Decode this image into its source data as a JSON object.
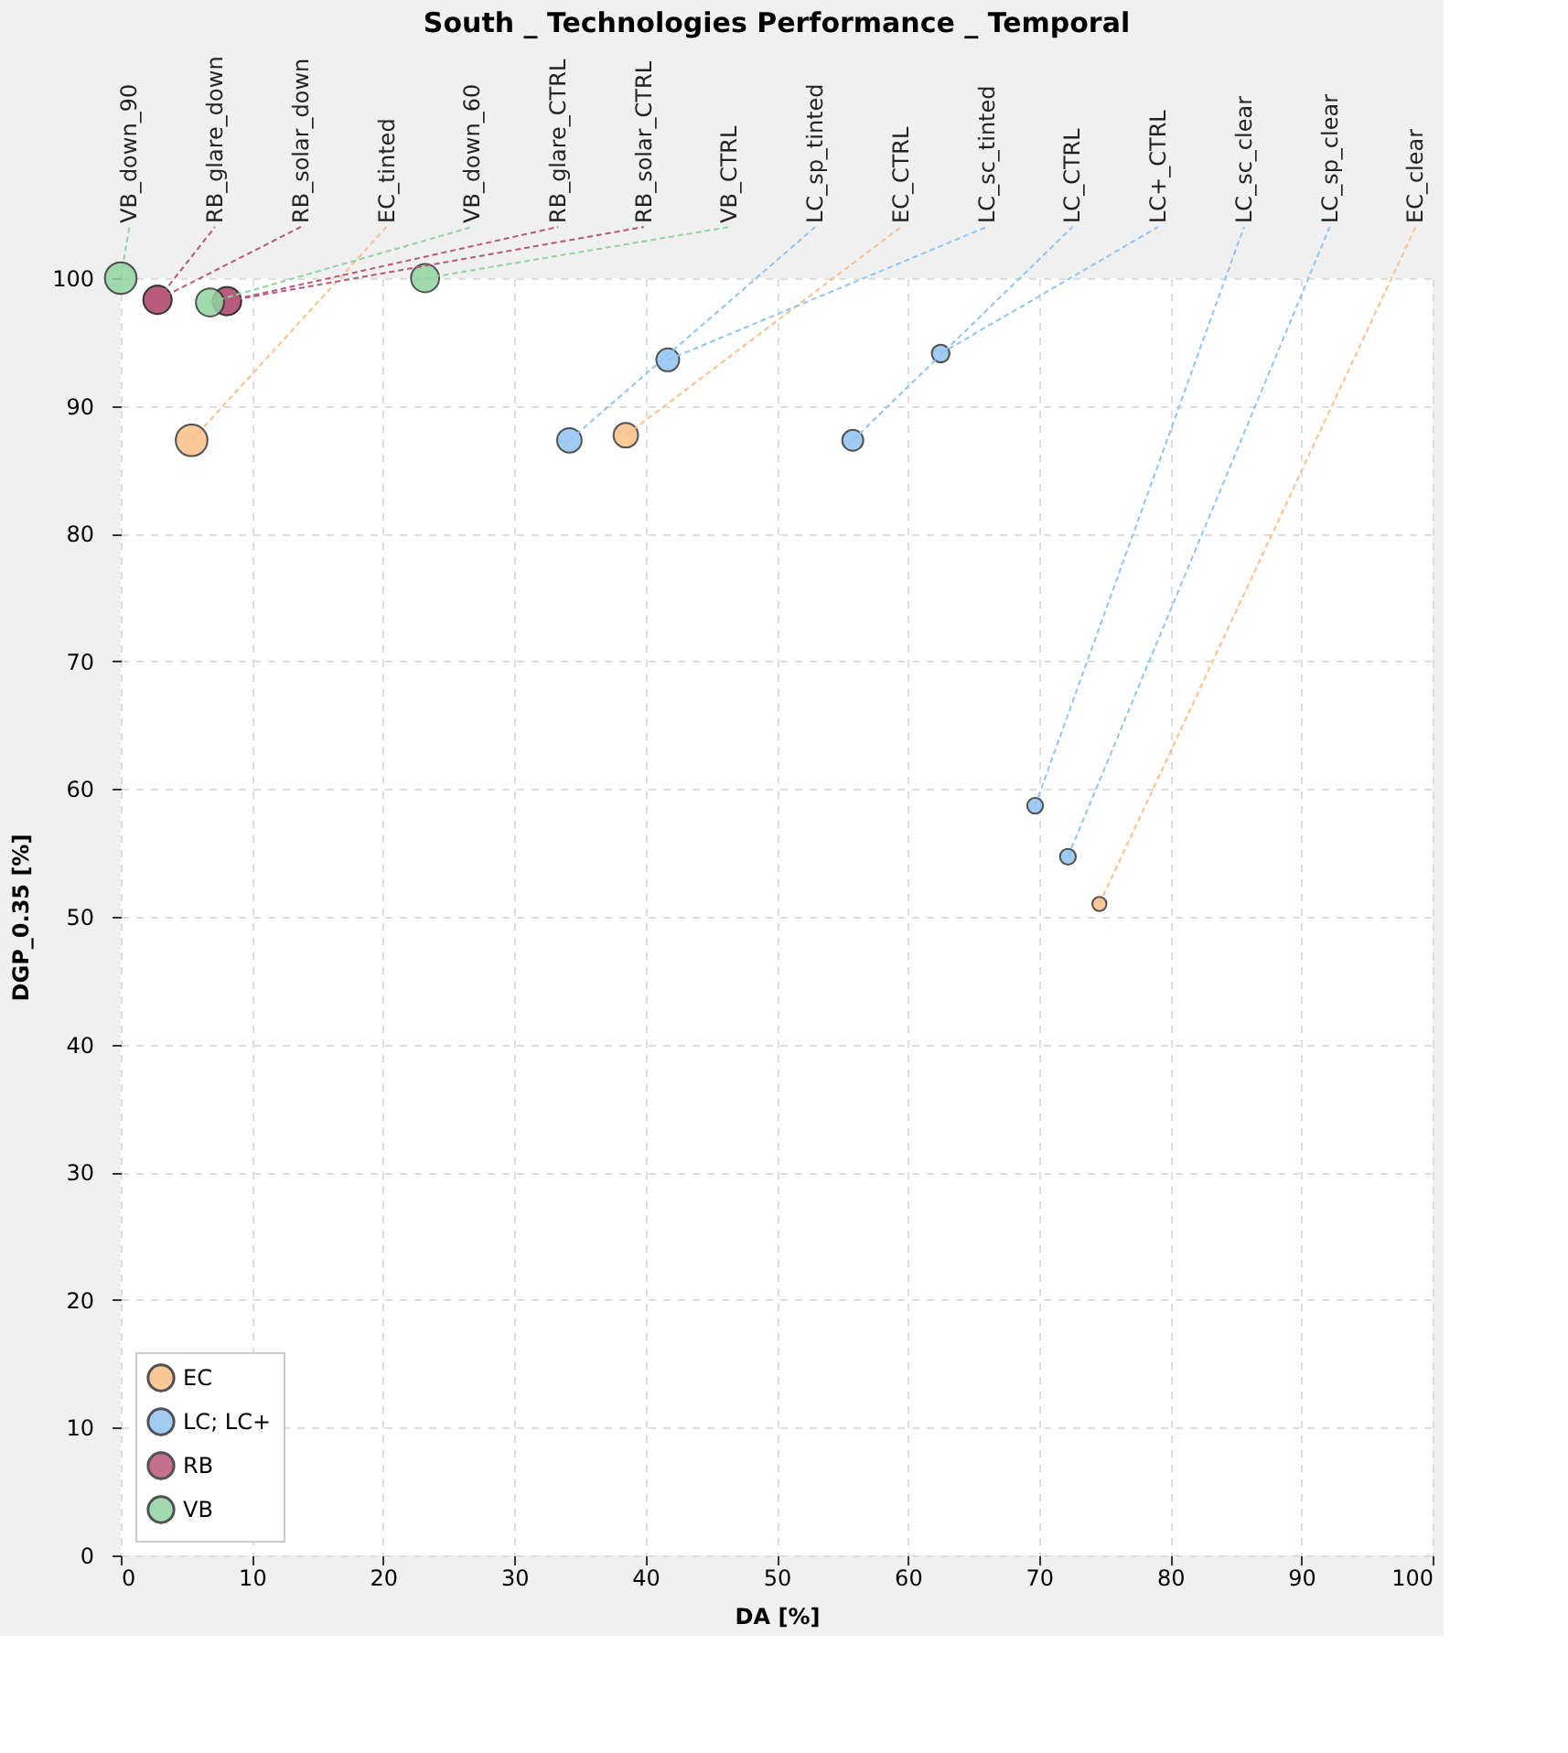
{
  "chart_data": {
    "type": "bubble",
    "title": "South _ Technologies Performance _ Temporal",
    "xlabel": "DA [%]",
    "ylabel": "DGP_0.35 [%]",
    "xlim": [
      0,
      100
    ],
    "ylim": [
      0,
      100
    ],
    "xticks": [
      0,
      10,
      20,
      30,
      40,
      50,
      60,
      70,
      80,
      90,
      100
    ],
    "yticks": [
      0,
      10,
      20,
      30,
      40,
      50,
      60,
      70,
      80,
      90,
      100
    ],
    "grid": true,
    "legend": "bottom left",
    "series": [
      {
        "name": "EC",
        "color": "#fbbf87",
        "x": [
          5.4,
          38.5,
          74.6
        ],
        "values": [
          87.3,
          87.7,
          51.0
        ],
        "sizes": [
          1,
          0.6,
          0.2
        ]
      },
      {
        "name": "LC; LC+",
        "color": "#90c4f3",
        "x": [
          34.2,
          41.7,
          55.8,
          62.5,
          69.7,
          72.2
        ],
        "values": [
          87.3,
          93.6,
          87.3,
          94.1,
          58.7,
          54.7
        ],
        "sizes": [
          0.6,
          0.52,
          0.44,
          0.31,
          0.25,
          0.25
        ]
      },
      {
        "name": "RB",
        "color": "#b8587a",
        "x": [
          2.8,
          2.8,
          8.1,
          8.1
        ],
        "values": [
          98.3,
          98.3,
          98.2,
          98.2
        ],
        "sizes": [
          0.79,
          0.79,
          0.79,
          0.79
        ]
      },
      {
        "name": "VB",
        "color": "#90d4a0",
        "x": [
          0,
          6.8,
          23.2
        ],
        "values": [
          100,
          98.1,
          100
        ],
        "sizes": [
          1,
          0.79,
          0.79
        ]
      }
    ],
    "annotations": [
      {
        "text": "VB_down_90",
        "x": 0,
        "y": 100
      },
      {
        "text": "RB_glare_down",
        "x": 2.8,
        "y": 98.3
      },
      {
        "text": "RB_solar_down",
        "x": 2.8,
        "y": 98.3
      },
      {
        "text": "EC_tinted",
        "x": 5.4,
        "y": 87.3
      },
      {
        "text": "VB_down_60",
        "x": 6.8,
        "y": 98.1
      },
      {
        "text": "RB_glare_CTRL",
        "x": 8.1,
        "y": 98.2
      },
      {
        "text": "RB_solar_CTRL",
        "x": 8.1,
        "y": 98.2
      },
      {
        "text": "VB_CTRL",
        "x": 23.2,
        "y": 100
      },
      {
        "text": "LC_sp_tinted",
        "x": 34.2,
        "y": 87.3
      },
      {
        "text": "EC_CTRL",
        "x": 38.5,
        "y": 87.7
      },
      {
        "text": "LC_sc_tinted",
        "x": 41.7,
        "y": 93.6
      },
      {
        "text": "LC_CTRL",
        "x": 55.8,
        "y": 87.3
      },
      {
        "text": "LC+_CTRL",
        "x": 62.5,
        "y": 94.1
      },
      {
        "text": "LC_sc_clear",
        "x": 69.7,
        "y": 58.7
      },
      {
        "text": "LC_sp_clear",
        "x": 72.2,
        "y": 54.7
      },
      {
        "text": "EC_clear",
        "x": 74.6,
        "y": 51.0
      }
    ]
  }
}
